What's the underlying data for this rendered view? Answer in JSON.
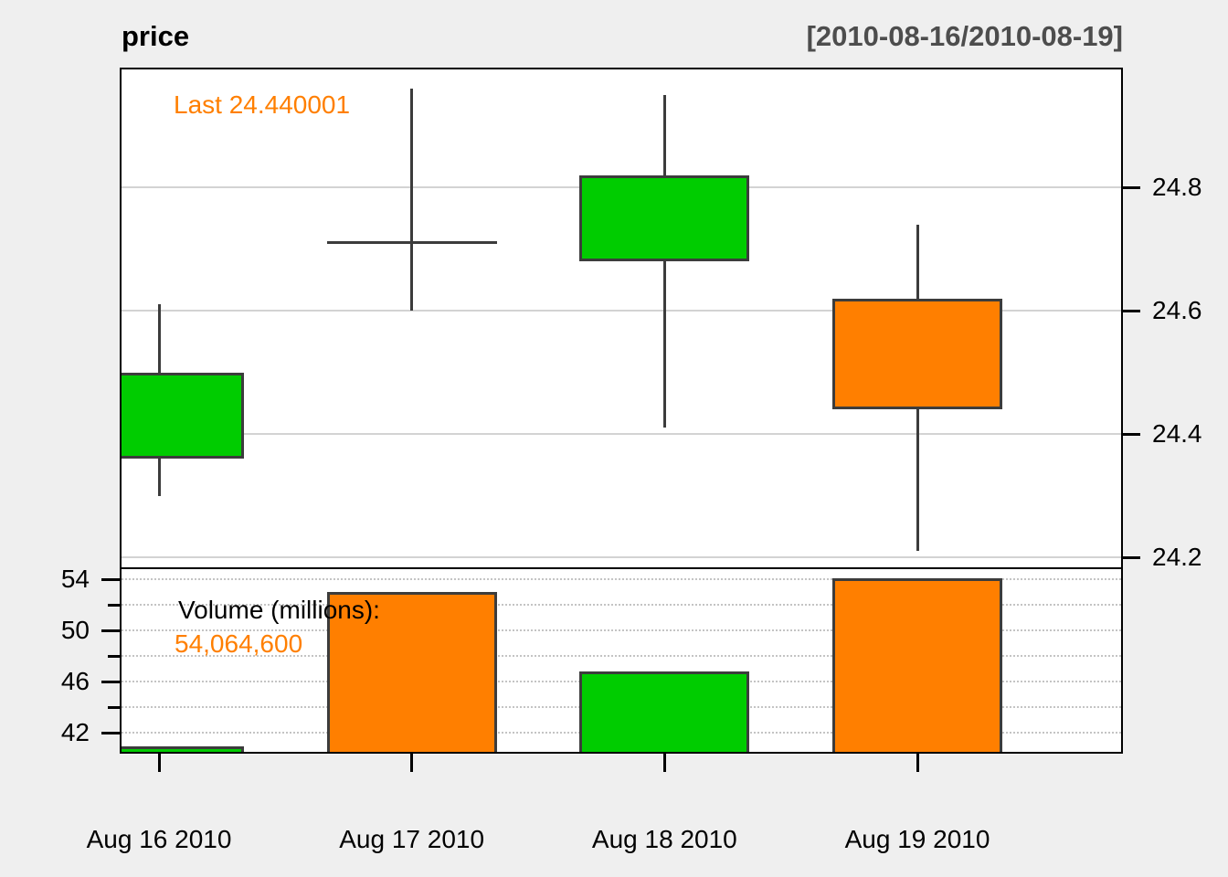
{
  "header": {
    "title": "price",
    "date_range": "[2010-08-16/2010-08-19]"
  },
  "colors": {
    "up": "#00CC00",
    "down": "#FF7F00",
    "outline": "#3C3C3C",
    "annotation_orange": "#FF7F00",
    "subtitle_gray": "#4D4D4D",
    "grid_solid": "#D3D3D3",
    "grid_dotted": "#C4C4C4",
    "panel_bg": "#FFFFFF",
    "page_bg": "#EFEFEF"
  },
  "chart_data": [
    {
      "type": "candlestick",
      "title": "price",
      "subtitle": "[2010-08-16/2010-08-19]",
      "annotation": "Last 24.440001",
      "x": [
        "Aug 16 2010",
        "Aug 17 2010",
        "Aug 18 2010",
        "Aug 19 2010"
      ],
      "series": [
        {
          "date": "Aug 16 2010",
          "open": 24.36,
          "high": 24.61,
          "low": 24.3,
          "close": 24.5,
          "direction": "up"
        },
        {
          "date": "Aug 17 2010",
          "open": 24.71,
          "high": 24.96,
          "low": 24.6,
          "close": 24.71,
          "direction": "flat"
        },
        {
          "date": "Aug 18 2010",
          "open": 24.68,
          "high": 24.95,
          "low": 24.41,
          "close": 24.82,
          "direction": "up"
        },
        {
          "date": "Aug 19 2010",
          "open": 24.62,
          "high": 24.74,
          "low": 24.21,
          "close": 24.44,
          "direction": "down"
        }
      ],
      "y_ticks": [
        24.8,
        24.6,
        24.4,
        24.2
      ],
      "ylim": [
        24.18,
        24.99
      ],
      "grid": true,
      "legend_position": "none",
      "y_axis_side": "right"
    },
    {
      "type": "bar",
      "name": "volume",
      "annotation_title": "Volume (millions):",
      "annotation_value": "54,064,600",
      "x": [
        "Aug 16 2010",
        "Aug 17 2010",
        "Aug 18 2010",
        "Aug 19 2010"
      ],
      "values": [
        40.9,
        53.0,
        46.8,
        54.0646
      ],
      "bar_directions": [
        "up",
        "down",
        "up",
        "down"
      ],
      "y_ticks_labeled": [
        54,
        50,
        46,
        42
      ],
      "y_ticks_all": [
        54,
        52,
        50,
        48,
        46,
        44,
        42
      ],
      "ylim": [
        40.5,
        54.8
      ],
      "grid": "dotted",
      "y_axis_side": "left"
    }
  ]
}
